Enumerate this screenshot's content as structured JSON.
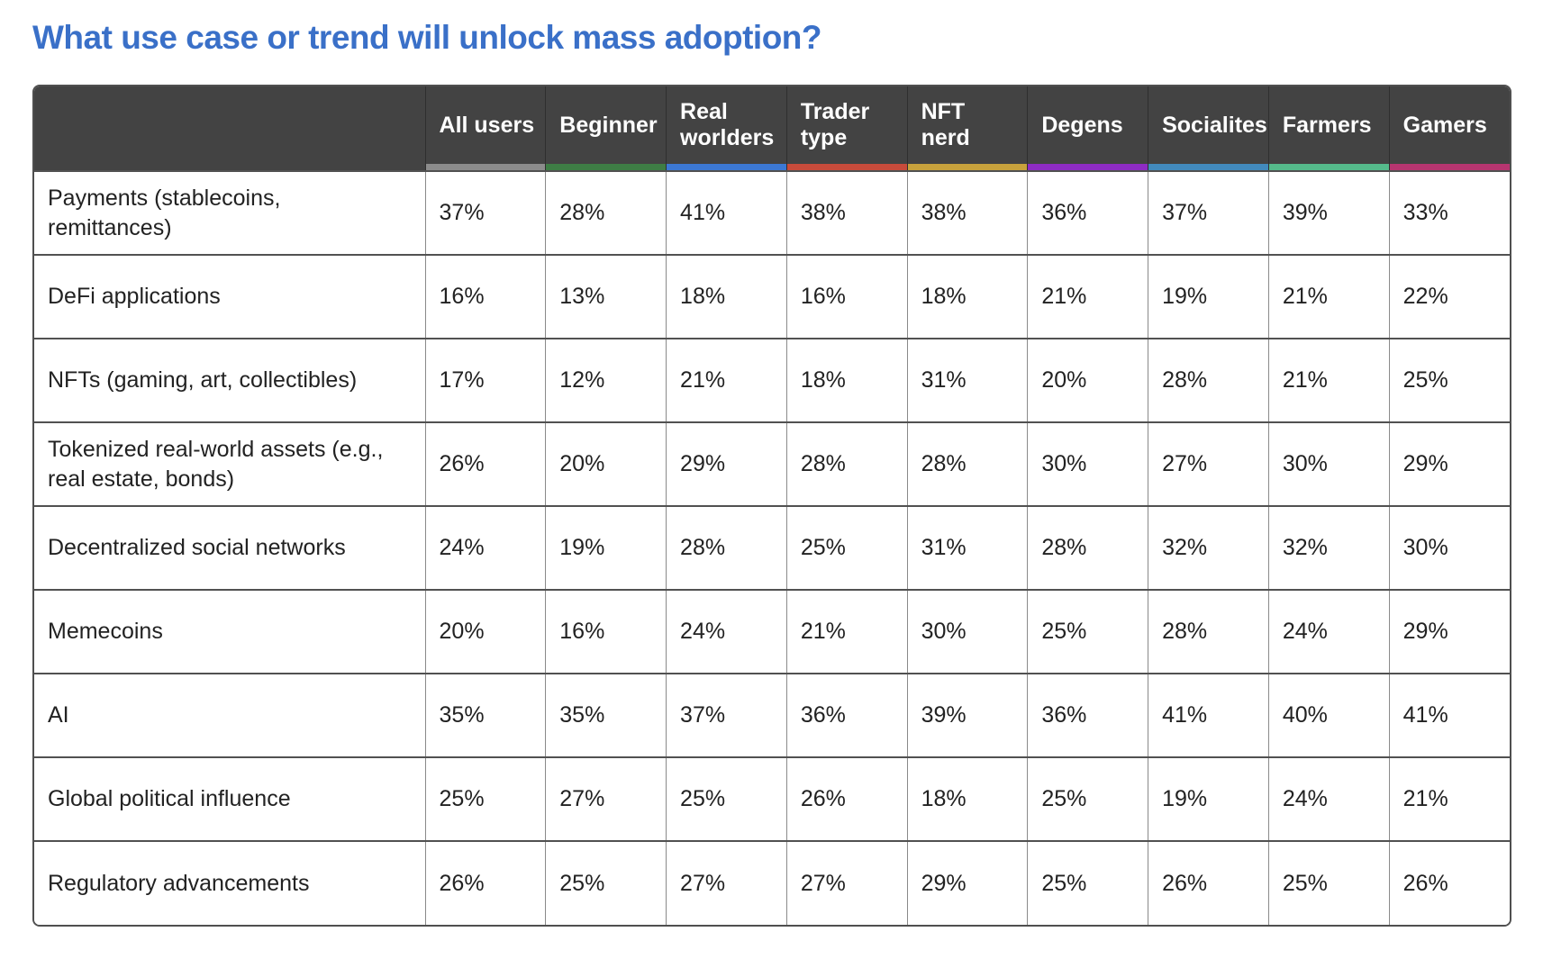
{
  "page": {
    "title": "What use case or trend will unlock mass adoption?"
  },
  "colors": {
    "title": "#3a70c8",
    "header_bg": "#434343",
    "header_text": "#ffffff"
  },
  "chart_data": {
    "type": "table",
    "title": "What use case or trend will unlock mass adoption?",
    "columns": [
      {
        "label": "All users",
        "accent": "#8c8c8c"
      },
      {
        "label": "Beginner",
        "accent": "#3e7d45"
      },
      {
        "label": "Real worlders",
        "accent": "#3c78d4"
      },
      {
        "label": "Trader type",
        "accent": "#c84b3b"
      },
      {
        "label": "NFT nerd",
        "accent": "#c8a23c"
      },
      {
        "label": "Degens",
        "accent": "#8e2cc4"
      },
      {
        "label": "Socialites",
        "accent": "#428abd"
      },
      {
        "label": "Farmers",
        "accent": "#55bb8b"
      },
      {
        "label": "Gamers",
        "accent": "#b73570"
      }
    ],
    "rows": [
      {
        "label": "Payments (stablecoins, remittances)",
        "values": [
          "37%",
          "28%",
          "41%",
          "38%",
          "38%",
          "36%",
          "37%",
          "39%",
          "33%"
        ]
      },
      {
        "label": "DeFi applications",
        "values": [
          "16%",
          "13%",
          "18%",
          "16%",
          "18%",
          "21%",
          "19%",
          "21%",
          "22%"
        ]
      },
      {
        "label": "NFTs (gaming, art, collectibles)",
        "values": [
          "17%",
          "12%",
          "21%",
          "18%",
          "31%",
          "20%",
          "28%",
          "21%",
          "25%"
        ]
      },
      {
        "label": "Tokenized real-world assets (e.g., real estate, bonds)",
        "values": [
          "26%",
          "20%",
          "29%",
          "28%",
          "28%",
          "30%",
          "27%",
          "30%",
          "29%"
        ]
      },
      {
        "label": "Decentralized social networks",
        "values": [
          "24%",
          "19%",
          "28%",
          "25%",
          "31%",
          "28%",
          "32%",
          "32%",
          "30%"
        ]
      },
      {
        "label": "Memecoins",
        "values": [
          "20%",
          "16%",
          "24%",
          "21%",
          "30%",
          "25%",
          "28%",
          "24%",
          "29%"
        ]
      },
      {
        "label": "AI",
        "values": [
          "35%",
          "35%",
          "37%",
          "36%",
          "39%",
          "36%",
          "41%",
          "40%",
          "41%"
        ]
      },
      {
        "label": "Global political influence",
        "values": [
          "25%",
          "27%",
          "25%",
          "26%",
          "18%",
          "25%",
          "19%",
          "24%",
          "21%"
        ]
      },
      {
        "label": "Regulatory advancements",
        "values": [
          "26%",
          "25%",
          "27%",
          "27%",
          "29%",
          "25%",
          "26%",
          "25%",
          "26%"
        ]
      }
    ]
  }
}
